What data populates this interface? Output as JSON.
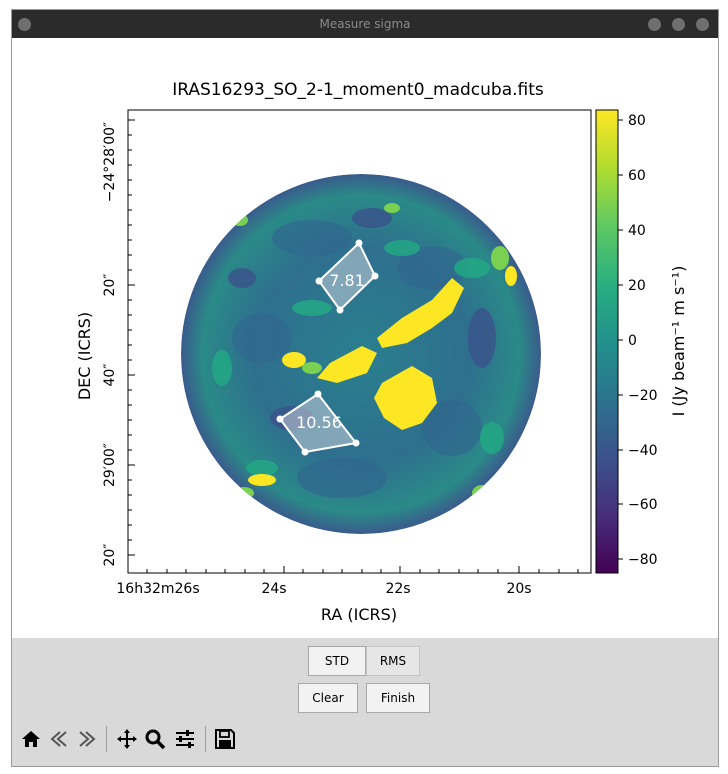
{
  "window": {
    "title": "Measure sigma"
  },
  "figure": {
    "title": "IRAS16293_SO_2-1_moment0_madcuba.fits",
    "ra_label": "RA (ICRS)",
    "dec_label": "DEC (ICRS)",
    "ra_ticks": [
      "16h32m26s",
      "24s",
      "22s",
      "20s"
    ],
    "dec_ticks": [
      "−24°28′00″",
      "20″",
      "40″",
      "29′00″",
      "20″"
    ],
    "colorbar_label": "I (Jy beam⁻¹ m s⁻¹)",
    "colorbar_ticks": [
      "80",
      "60",
      "40",
      "20",
      "0",
      "−20",
      "−40",
      "−60",
      "−80"
    ],
    "colormap": "viridis",
    "regions": [
      {
        "name": "region-1",
        "value": "7.81"
      },
      {
        "name": "region-2",
        "value": "10.56"
      }
    ]
  },
  "buttons": {
    "std": "STD",
    "rms": "RMS",
    "clear": "Clear",
    "finish": "Finish"
  },
  "toolbar": {
    "icons": [
      "home-icon",
      "back-icon",
      "forward-icon",
      "pan-icon",
      "zoom-icon",
      "configure-icon",
      "save-icon"
    ]
  }
}
